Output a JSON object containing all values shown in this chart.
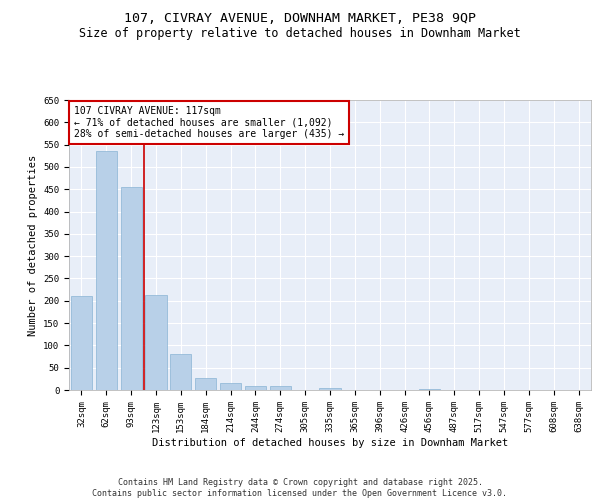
{
  "title_line1": "107, CIVRAY AVENUE, DOWNHAM MARKET, PE38 9QP",
  "title_line2": "Size of property relative to detached houses in Downham Market",
  "xlabel": "Distribution of detached houses by size in Downham Market",
  "ylabel": "Number of detached properties",
  "categories": [
    "32sqm",
    "62sqm",
    "93sqm",
    "123sqm",
    "153sqm",
    "184sqm",
    "214sqm",
    "244sqm",
    "274sqm",
    "305sqm",
    "335sqm",
    "365sqm",
    "396sqm",
    "426sqm",
    "456sqm",
    "487sqm",
    "517sqm",
    "547sqm",
    "577sqm",
    "608sqm",
    "638sqm"
  ],
  "values": [
    210,
    535,
    455,
    213,
    80,
    26,
    15,
    10,
    8,
    0,
    5,
    0,
    0,
    0,
    3,
    0,
    0,
    1,
    0,
    0,
    1
  ],
  "bar_color": "#b8d0e8",
  "bar_edge_color": "#8ab4d4",
  "background_color": "#e8eef8",
  "grid_color": "#ffffff",
  "annotation_text": "107 CIVRAY AVENUE: 117sqm\n← 71% of detached houses are smaller (1,092)\n28% of semi-detached houses are larger (435) →",
  "annotation_box_color": "#ffffff",
  "annotation_box_edge": "#cc0000",
  "vline_color": "#cc0000",
  "vline_pos": 2.5,
  "ylim": [
    0,
    650
  ],
  "yticks": [
    0,
    50,
    100,
    150,
    200,
    250,
    300,
    350,
    400,
    450,
    500,
    550,
    600,
    650
  ],
  "footer_text": "Contains HM Land Registry data © Crown copyright and database right 2025.\nContains public sector information licensed under the Open Government Licence v3.0.",
  "title_fontsize": 9.5,
  "subtitle_fontsize": 8.5,
  "axis_label_fontsize": 7.5,
  "tick_fontsize": 6.5,
  "annotation_fontsize": 7,
  "footer_fontsize": 6
}
